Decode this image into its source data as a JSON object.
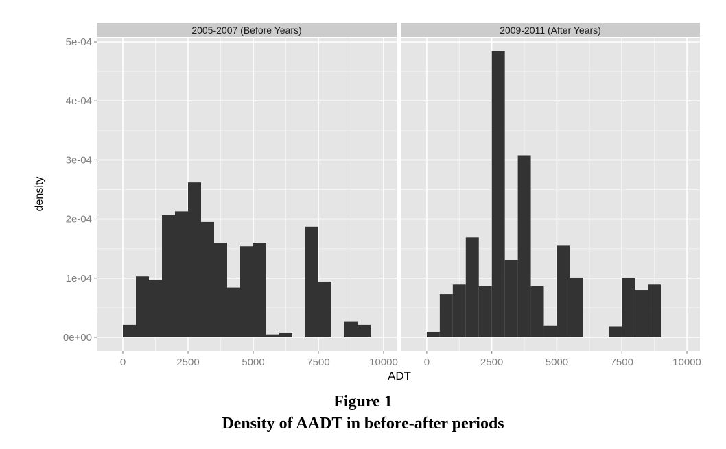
{
  "chart_data": {
    "type": "bar",
    "ylabel": "density",
    "xlabel": "ADT",
    "xlim": [
      -1000,
      10500
    ],
    "ylim": [
      -1.95e-05,
      0.000508
    ],
    "x_ticks": [
      0,
      2500,
      5000,
      7500,
      10000
    ],
    "x_tick_labels": [
      "0",
      "2500",
      "5000",
      "7500",
      "10000"
    ],
    "y_ticks": [
      0,
      0.0001,
      0.0002,
      0.0003,
      0.0004,
      0.0005
    ],
    "y_tick_labels": [
      "0e+00",
      "1e-04",
      "2e-04",
      "3e-04",
      "4e-04",
      "5e-04"
    ],
    "bin_width": 500,
    "grid": true,
    "panels": [
      {
        "strip": "2005-2007 (Before Years)",
        "bins": [
          {
            "x0": 0,
            "x1": 500,
            "density": 2.1e-05
          },
          {
            "x0": 500,
            "x1": 1000,
            "density": 0.000103
          },
          {
            "x0": 1000,
            "x1": 1500,
            "density": 9.7e-05
          },
          {
            "x0": 1500,
            "x1": 2000,
            "density": 0.000207
          },
          {
            "x0": 2000,
            "x1": 2500,
            "density": 0.000213
          },
          {
            "x0": 2500,
            "x1": 3000,
            "density": 0.000262
          },
          {
            "x0": 3000,
            "x1": 3500,
            "density": 0.000195
          },
          {
            "x0": 3500,
            "x1": 4000,
            "density": 0.00016
          },
          {
            "x0": 4000,
            "x1": 4500,
            "density": 8.4e-05
          },
          {
            "x0": 4500,
            "x1": 5000,
            "density": 0.000154
          },
          {
            "x0": 5000,
            "x1": 5500,
            "density": 0.00016
          },
          {
            "x0": 5500,
            "x1": 6000,
            "density": 5e-06
          },
          {
            "x0": 6000,
            "x1": 6500,
            "density": 7e-06
          },
          {
            "x0": 7000,
            "x1": 7500,
            "density": 0.000187
          },
          {
            "x0": 7500,
            "x1": 8000,
            "density": 9.4e-05
          },
          {
            "x0": 8500,
            "x1": 9000,
            "density": 2.6e-05
          },
          {
            "x0": 9000,
            "x1": 9500,
            "density": 2.1e-05
          }
        ]
      },
      {
        "strip": "2009-2011 (After Years)",
        "bins": [
          {
            "x0": 0,
            "x1": 500,
            "density": 9e-06
          },
          {
            "x0": 500,
            "x1": 1000,
            "density": 7.3e-05
          },
          {
            "x0": 1000,
            "x1": 1500,
            "density": 8.9e-05
          },
          {
            "x0": 1500,
            "x1": 2000,
            "density": 0.000169
          },
          {
            "x0": 2000,
            "x1": 2500,
            "density": 8.7e-05
          },
          {
            "x0": 2500,
            "x1": 3000,
            "density": 0.000484
          },
          {
            "x0": 3000,
            "x1": 3500,
            "density": 0.00013
          },
          {
            "x0": 3500,
            "x1": 4000,
            "density": 0.000308
          },
          {
            "x0": 4000,
            "x1": 4500,
            "density": 8.7e-05
          },
          {
            "x0": 4500,
            "x1": 5000,
            "density": 2e-05
          },
          {
            "x0": 5000,
            "x1": 5500,
            "density": 0.000155
          },
          {
            "x0": 5500,
            "x1": 6000,
            "density": 0.000101
          },
          {
            "x0": 7000,
            "x1": 7500,
            "density": 1.8e-05
          },
          {
            "x0": 7500,
            "x1": 8000,
            "density": 0.0001
          },
          {
            "x0": 8000,
            "x1": 8500,
            "density": 8e-05
          },
          {
            "x0": 8500,
            "x1": 9000,
            "density": 8.9e-05
          }
        ]
      }
    ],
    "colors": {
      "bar": "#333333",
      "panel_bg": "#e5e5e5",
      "strip_bg": "#cccccc",
      "grid_major": "#ffffff",
      "grid_minor": "#f2f2f2",
      "tick_text": "#7f7f7f"
    }
  },
  "caption": {
    "line1": "Figure 1",
    "line2": "Density of AADT in before-after periods"
  }
}
